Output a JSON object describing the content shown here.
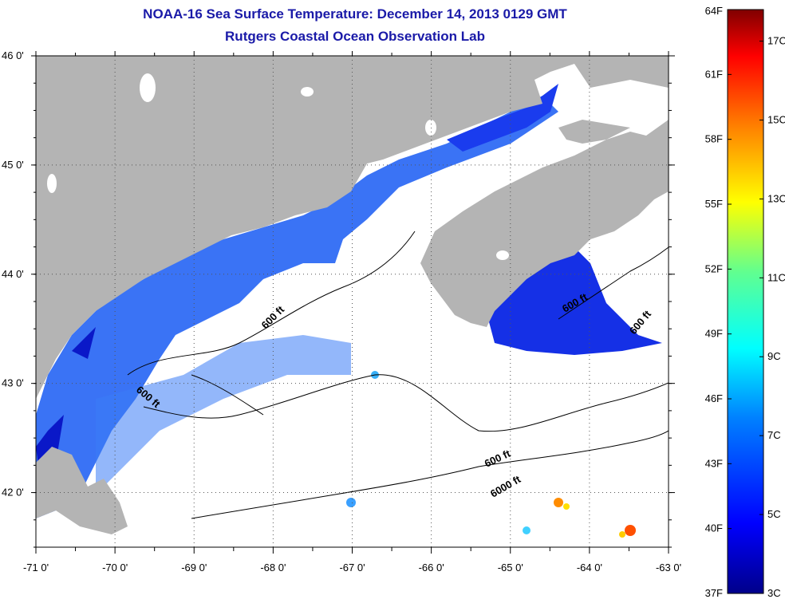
{
  "title": "NOAA-16 Sea Surface Temperature:  December 14, 2013 0129 GMT",
  "subtitle": "Rutgers Coastal Ocean Observation Lab",
  "colors": {
    "land": "#b4b4b4",
    "cloud": "#ffffff",
    "frame": "#000000",
    "title": "#1a1aa8",
    "contour": "#000000"
  },
  "map": {
    "lon_labels": [
      "-71 0'",
      "-70 0'",
      "-69 0'",
      "-68 0'",
      "-67 0'",
      "-66 0'",
      "-65 0'",
      "-64 0'",
      "-63 0'"
    ],
    "lat_labels": [
      "46 0'",
      "45 0'",
      "44 0'",
      "43 0'",
      "42 0'"
    ],
    "lon_range": [
      -71,
      -63
    ],
    "lat_range": [
      41.5,
      46
    ],
    "grid": "dotted",
    "contour_labels": [
      "600 ft",
      "600 ft",
      "600 ft",
      "600 ft",
      "600 ft",
      "6000 ft"
    ]
  },
  "colorbar": {
    "fahrenheit_labels": [
      "64F",
      "61F",
      "58F",
      "55F",
      "52F",
      "49F",
      "46F",
      "43F",
      "40F",
      "37F"
    ],
    "celsius_labels": [
      "17C",
      "15C",
      "13C",
      "11C",
      "9C",
      "7C",
      "5C",
      "3C"
    ],
    "range_f": [
      37,
      64
    ],
    "range_c": [
      3,
      17.8
    ]
  }
}
